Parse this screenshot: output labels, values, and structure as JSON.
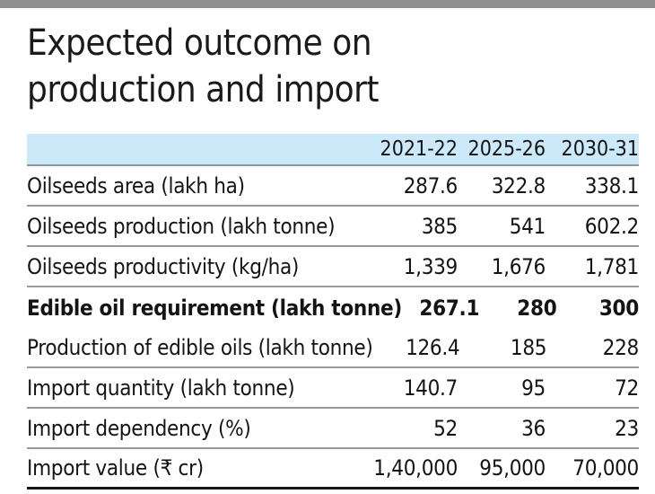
{
  "page": {
    "title_line1": "Expected outcome on",
    "title_line2": "production and import"
  },
  "colors": {
    "top_bar": "#8d8e90",
    "header_background": "#cbe9f9",
    "row_divider": "#97999b",
    "bottom_rule": "#14181c",
    "text": "#141414"
  },
  "table": {
    "columns": [
      "2021-22",
      "2025-26",
      "2030-31"
    ],
    "rows": [
      {
        "label": "Oilseeds area (lakh ha)",
        "v0": "287.6",
        "v1": "322.8",
        "v2": "338.1"
      },
      {
        "label": "Oilseeds production (lakh tonne)",
        "v0": "385",
        "v1": "541",
        "v2": "602.2"
      },
      {
        "label": "Oilseeds productivity (kg/ha)",
        "v0": "1,339",
        "v1": "1,676",
        "v2": "1,781"
      },
      {
        "label": "Edible oil requirement (lakh tonne)",
        "v0": "267.1",
        "v1": "280",
        "v2": "300"
      },
      {
        "label": "Production of edible oils (lakh tonne)",
        "v0": "126.4",
        "v1": "185",
        "v2": "228"
      },
      {
        "label": "Import quantity (lakh tonne)",
        "v0": "140.7",
        "v1": "95",
        "v2": "72"
      },
      {
        "label": "Import dependency (%)",
        "v0": "52",
        "v1": "36",
        "v2": "23"
      },
      {
        "label": "Import value (₹ cr)",
        "v0": "1,40,000",
        "v1": "95,000",
        "v2": "70,000"
      }
    ]
  },
  "chart_data": {
    "type": "table",
    "title": "Expected outcome on production and import",
    "columns": [
      "2021-22",
      "2025-26",
      "2030-31"
    ],
    "rows": [
      {
        "label": "Oilseeds area (lakh ha)",
        "values": [
          287.6,
          322.8,
          338.1
        ],
        "emphasis": false
      },
      {
        "label": "Oilseeds production (lakh tonne)",
        "values": [
          385,
          541,
          602.2
        ],
        "emphasis": false
      },
      {
        "label": "Oilseeds productivity (kg/ha)",
        "values": [
          1339,
          1676,
          1781
        ],
        "emphasis": false
      },
      {
        "label": "Edible oil requirement (lakh tonne)",
        "values": [
          267.1,
          280,
          300
        ],
        "emphasis": true
      },
      {
        "label": "Production of edible oils (lakh tonne)",
        "values": [
          126.4,
          185,
          228
        ],
        "emphasis": false
      },
      {
        "label": "Import quantity (lakh tonne)",
        "values": [
          140.7,
          95,
          72
        ],
        "emphasis": false
      },
      {
        "label": "Import dependency (%)",
        "values": [
          52,
          36,
          23
        ],
        "emphasis": false
      },
      {
        "label": "Import value (₹ cr)",
        "values": [
          140000,
          95000,
          70000
        ],
        "emphasis": false
      }
    ]
  }
}
